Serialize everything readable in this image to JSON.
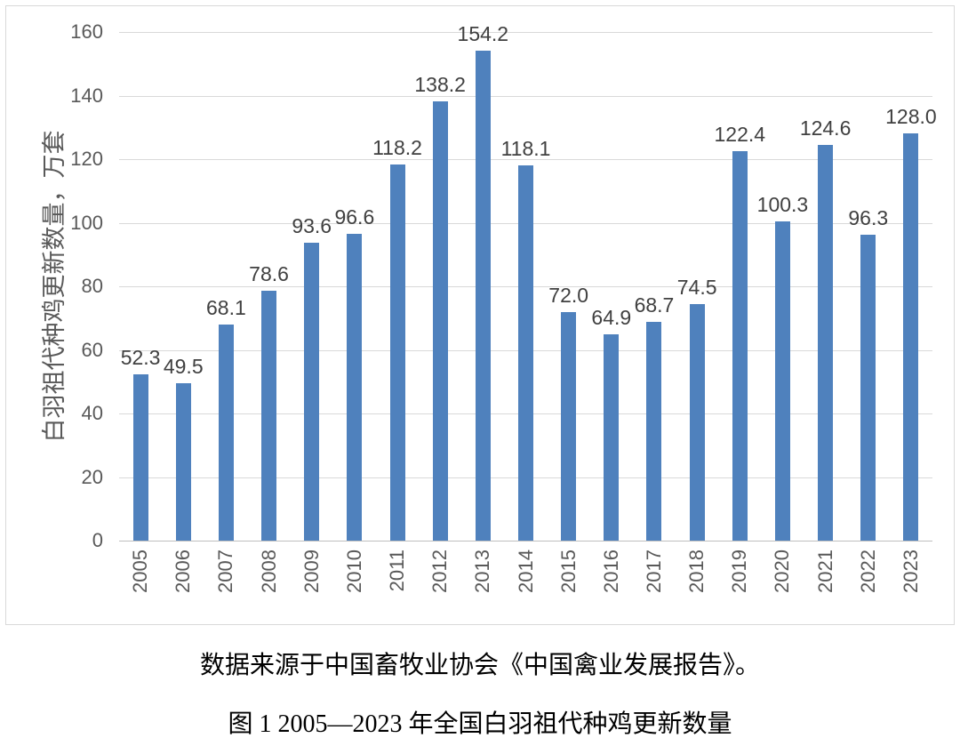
{
  "chart_data": {
    "type": "bar",
    "categories": [
      "2005",
      "2006",
      "2007",
      "2008",
      "2009",
      "2010",
      "2011",
      "2012",
      "2013",
      "2014",
      "2015",
      "2016",
      "2017",
      "2018",
      "2019",
      "2020",
      "2021",
      "2022",
      "2023"
    ],
    "values": [
      52.3,
      49.5,
      68.1,
      78.6,
      93.6,
      96.6,
      118.2,
      138.2,
      154.2,
      118.1,
      72.0,
      64.9,
      68.7,
      74.5,
      122.4,
      100.3,
      124.6,
      96.3,
      128.0
    ],
    "value_labels": [
      "52.3",
      "49.5",
      "68.1",
      "78.6",
      "93.6",
      "96.6",
      "118.2",
      "138.2",
      "154.2",
      "118.1",
      "72.0",
      "64.9",
      "68.7",
      "74.5",
      "122.4",
      "100.3",
      "124.6",
      "96.3",
      "128.0"
    ],
    "title": "",
    "xlabel": "",
    "ylabel": "白羽祖代种鸡更新数量，万套",
    "ylim": [
      0,
      160
    ],
    "yticks": [
      0,
      20,
      40,
      60,
      80,
      100,
      120,
      140,
      160
    ],
    "grid": true,
    "legend_position": "none",
    "bar_color": "#4F81BD"
  },
  "captions": {
    "source": "数据来源于中国畜牧业协会《中国禽业发展报告》。",
    "figure_title": "图 1 2005—2023 年全国白羽祖代种鸡更新数量"
  },
  "colors": {
    "bar": "#4F81BD",
    "gridline": "#D9D9D9",
    "axis_line": "#BFBFBF",
    "tick_text": "#595959",
    "data_label_text": "#404040",
    "panel_border": "#D9D9D9",
    "caption_text": "#000000",
    "background": "#FFFFFF"
  }
}
